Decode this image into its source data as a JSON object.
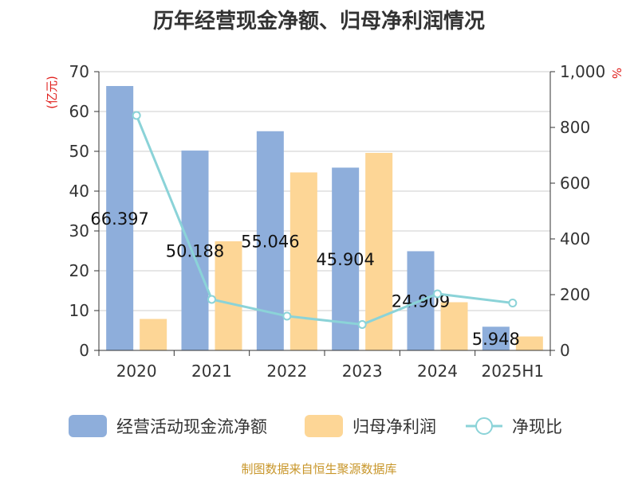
{
  "chart_data": {
    "type": "bar",
    "title": "历年经营现金净额、归母净利润情况",
    "categories": [
      "2020",
      "2021",
      "2022",
      "2023",
      "2024",
      "2025H1"
    ],
    "y_left": {
      "label": "(亿元)",
      "range": [
        0,
        70
      ],
      "ticks": [
        "0",
        "10",
        "20",
        "30",
        "40",
        "50",
        "60",
        "70"
      ]
    },
    "y_right": {
      "label": "%",
      "range": [
        0,
        1000
      ],
      "ticks": [
        "0",
        "200",
        "400",
        "600",
        "800",
        "1,000"
      ]
    },
    "grid": true,
    "legend_position": "bottom",
    "series": [
      {
        "name": "经营活动现金流净额",
        "type": "bar",
        "axis": "left",
        "color": "#8eaedb",
        "values": [
          66.397,
          50.188,
          55.046,
          45.904,
          24.909,
          5.948
        ],
        "data_labels": [
          "66.397",
          "50.188",
          "55.046",
          "45.904",
          "24.909",
          "5.948"
        ]
      },
      {
        "name": "归母净利润",
        "type": "bar",
        "axis": "left",
        "color": "#fdd696",
        "values": [
          7.9,
          27.4,
          44.7,
          49.6,
          12.1,
          3.5
        ]
      },
      {
        "name": "净现比",
        "type": "line",
        "axis": "right",
        "color": "#8bd3d8",
        "values": [
          843,
          183,
          123,
          93,
          203,
          170
        ]
      }
    ]
  },
  "source": "制图数据来自恒生聚源数据库"
}
